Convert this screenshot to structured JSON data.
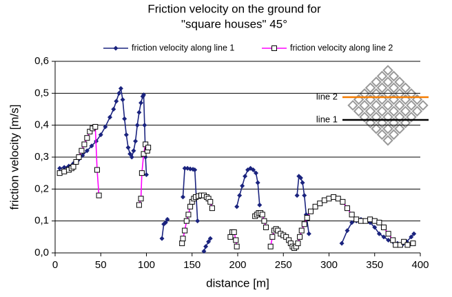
{
  "chart_data": {
    "type": "line",
    "title": [
      "Friction velocity on  the ground for",
      "\"square houses\" 45°"
    ],
    "x_label": "distance [m]",
    "y_label": "friction velocity [m/s]",
    "xlim": [
      0,
      400
    ],
    "xticks": [
      0,
      50,
      100,
      150,
      200,
      250,
      300,
      350,
      400
    ],
    "ylim": [
      0,
      0.6
    ],
    "yticks": [
      {
        "value": 0,
        "label": "0,0"
      },
      {
        "value": 0.1,
        "label": "0,1"
      },
      {
        "value": 0.2,
        "label": "0,2"
      },
      {
        "value": 0.3,
        "label": "0,3"
      },
      {
        "value": 0.4,
        "label": "0,4"
      },
      {
        "value": 0.5,
        "label": "0,5"
      },
      {
        "value": 0.6,
        "label": "0,6"
      }
    ],
    "grid": true,
    "legend": "top",
    "annotations": [
      "line 2",
      "line 1"
    ],
    "series": [
      {
        "name": "friction velocity along line 1",
        "color": "#1a237e",
        "marker": "diamond",
        "marker_color": "#1a237e",
        "x": [
          5,
          10,
          15,
          20,
          25,
          30,
          35,
          40,
          45,
          50,
          55,
          60,
          64,
          67,
          70,
          72,
          74,
          76,
          78,
          80,
          82,
          84,
          86,
          88,
          90,
          92,
          94,
          96,
          97,
          98,
          99,
          100,
          null,
          117,
          119,
          121,
          123,
          null,
          140,
          142,
          145,
          148,
          151,
          153,
          156,
          null,
          163,
          165,
          168,
          170,
          null,
          199,
          202,
          205,
          208,
          211,
          214,
          217,
          220,
          222,
          224,
          null,
          265,
          267,
          269,
          271,
          273,
          275,
          278,
          null,
          314,
          320,
          325,
          330,
          335,
          340,
          345,
          350,
          355,
          360,
          365,
          370,
          375,
          380,
          385,
          390,
          393
        ],
        "values": [
          0.265,
          0.268,
          0.272,
          0.28,
          0.29,
          0.305,
          0.32,
          0.335,
          0.35,
          0.37,
          0.395,
          0.425,
          0.45,
          0.475,
          0.5,
          0.515,
          0.48,
          0.42,
          0.37,
          0.33,
          0.31,
          0.3,
          0.32,
          0.35,
          0.4,
          0.44,
          0.47,
          0.49,
          0.495,
          0.4,
          0.3,
          0.245,
          null,
          0.045,
          0.09,
          0.095,
          0.105,
          null,
          0.175,
          0.265,
          0.265,
          0.263,
          0.262,
          0.26,
          0.1,
          null,
          0.005,
          0.02,
          0.035,
          0.045,
          null,
          0.145,
          0.18,
          0.21,
          0.24,
          0.26,
          0.265,
          0.26,
          0.25,
          0.22,
          0.15,
          null,
          0.18,
          0.24,
          0.235,
          0.22,
          0.18,
          0.12,
          0.06,
          null,
          0.03,
          0.07,
          0.095,
          0.1,
          0.105,
          0.1,
          0.095,
          0.08,
          0.06,
          0.05,
          0.04,
          0.035,
          0.03,
          0.025,
          0.035,
          0.05,
          0.06
        ]
      },
      {
        "name": "friction velocity along line 2",
        "color": "#ff00ff",
        "marker": "square",
        "marker_color": "#ffffff",
        "x": [
          5,
          10,
          15,
          18,
          20,
          23,
          26,
          29,
          32,
          35,
          38,
          41,
          44,
          46,
          48,
          null,
          92,
          94,
          95,
          97,
          99,
          101,
          102,
          null,
          139,
          140,
          142,
          144,
          146,
          148,
          150,
          152,
          154,
          157,
          160,
          163,
          166,
          168,
          170,
          172,
          null,
          192,
          194,
          196,
          198,
          199,
          null,
          219,
          221,
          223,
          225,
          227,
          229,
          231,
          null,
          236,
          238,
          240,
          242,
          244,
          247,
          250,
          253,
          256,
          258,
          260,
          262,
          264,
          266,
          268,
          270,
          273,
          276,
          280,
          285,
          290,
          295,
          300,
          305,
          310,
          315,
          320,
          325,
          330,
          335,
          340,
          345,
          350,
          355,
          360,
          365,
          370,
          373,
          378,
          382,
          386,
          392
        ],
        "values": [
          0.25,
          0.255,
          0.26,
          0.265,
          0.27,
          0.285,
          0.3,
          0.32,
          0.34,
          0.36,
          0.38,
          0.39,
          0.395,
          0.26,
          0.18,
          null,
          0.15,
          0.17,
          0.25,
          0.31,
          0.34,
          0.32,
          0.33,
          null,
          0.03,
          0.045,
          0.07,
          0.1,
          0.12,
          0.145,
          0.16,
          0.17,
          0.175,
          0.178,
          0.18,
          0.18,
          0.175,
          0.17,
          0.16,
          0.14,
          null,
          0.05,
          0.065,
          0.065,
          0.04,
          0.02,
          null,
          0.115,
          0.12,
          0.125,
          0.125,
          0.12,
          0.1,
          0.08,
          null,
          0.02,
          0.05,
          0.07,
          0.075,
          0.07,
          0.06,
          0.055,
          0.05,
          0.04,
          0.03,
          0.02,
          0.015,
          0.02,
          0.03,
          0.05,
          0.07,
          0.09,
          0.11,
          0.13,
          0.145,
          0.155,
          0.165,
          0.17,
          0.175,
          0.17,
          0.16,
          0.14,
          0.12,
          0.105,
          0.1,
          0.1,
          0.105,
          0.1,
          0.095,
          0.08,
          0.06,
          0.04,
          0.025,
          0.025,
          0.035,
          0.025,
          0.03
        ]
      }
    ]
  }
}
